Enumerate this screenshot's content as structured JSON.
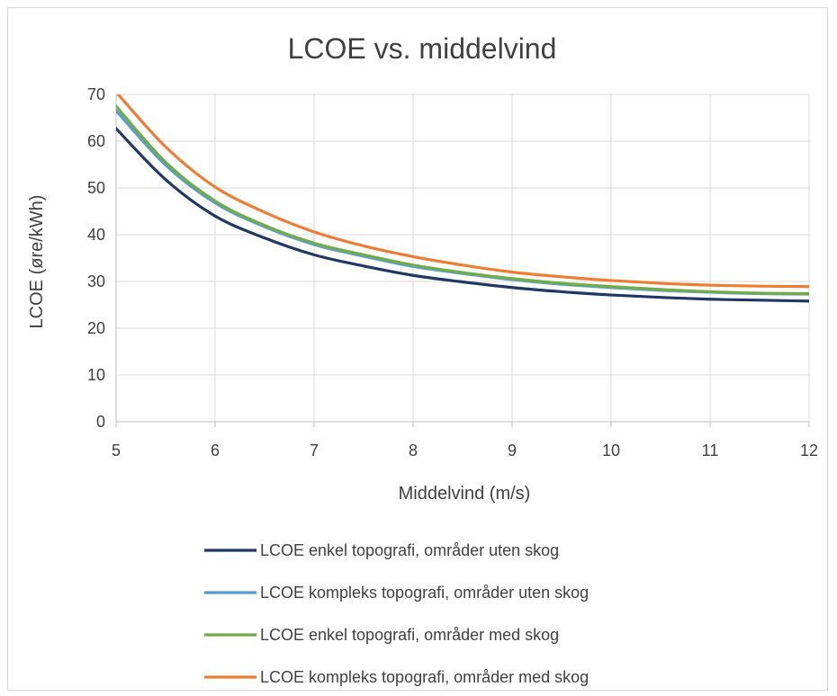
{
  "chart_data": {
    "type": "line",
    "title": "LCOE vs. middelvind",
    "xlabel": "Middelvind (m/s)",
    "ylabel": "LCOE (øre/kWh)",
    "xlim": [
      5,
      12
    ],
    "ylim": [
      0,
      70
    ],
    "x_ticks": [
      "5",
      "6",
      "7",
      "8",
      "9",
      "10",
      "11",
      "12"
    ],
    "y_ticks": [
      "0",
      "10",
      "20",
      "30",
      "40",
      "50",
      "60",
      "70"
    ],
    "grid": true,
    "legend_position": "bottom",
    "x": [
      5,
      5.5,
      6,
      6.5,
      7,
      7.5,
      8,
      8.5,
      9,
      9.5,
      10,
      10.5,
      11,
      11.5,
      12
    ],
    "series": [
      {
        "name": "LCOE enkel topografi, områder uten skog",
        "color": "#1f3864",
        "values": [
          62.7,
          51.8,
          44.0,
          39.3,
          35.7,
          33.3,
          31.3,
          29.9,
          28.7,
          27.8,
          27.1,
          26.6,
          26.2,
          26.0,
          25.8
        ]
      },
      {
        "name": "LCOE kompleks topografi, områder uten skog",
        "color": "#5b9bd5",
        "values": [
          66.5,
          54.9,
          46.8,
          41.7,
          37.9,
          35.4,
          33.2,
          31.7,
          30.4,
          29.4,
          28.7,
          28.1,
          27.7,
          27.4,
          27.3
        ]
      },
      {
        "name": "LCOE enkel topografi, områder med skog",
        "color": "#70ad47",
        "values": [
          67.5,
          55.5,
          47.2,
          42.0,
          38.2,
          35.7,
          33.5,
          31.9,
          30.6,
          29.6,
          28.9,
          28.3,
          27.8,
          27.5,
          27.4
        ]
      },
      {
        "name": "LCOE kompleks topografi, områder med skog",
        "color": "#ed7d31",
        "values": [
          70.5,
          58.8,
          50.2,
          44.8,
          40.6,
          37.6,
          35.3,
          33.5,
          32.0,
          31.0,
          30.2,
          29.6,
          29.2,
          29.0,
          28.9
        ]
      }
    ]
  }
}
